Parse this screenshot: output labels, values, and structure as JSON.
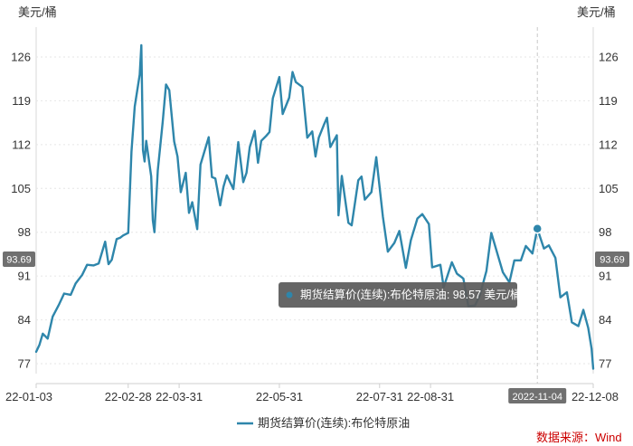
{
  "chart_data": {
    "type": "line",
    "unit_left": "美元/桶",
    "unit_right": "美元/桶",
    "y_ticks": [
      126,
      119,
      112,
      105,
      98,
      91,
      84,
      77
    ],
    "x_ticks": [
      "22-01-03",
      "22-02-28",
      "22-03-31",
      "22-05-31",
      "22-07-31",
      "22-08-31",
      "22-12-08"
    ],
    "ylim": [
      74,
      131
    ],
    "grid": true,
    "legend_position": "bottom",
    "current_value_label": "93.69",
    "crosshair_date": "2022-11-04",
    "tooltip": {
      "series": "期货结算价(连续):布伦特原油",
      "value": "98.57",
      "unit": "美元/桶"
    },
    "source_label": "数据来源：Wind",
    "line_color": "#2e86ab",
    "series": [
      {
        "name": "期货结算价(连续):布伦特原油",
        "x": [
          "2022-01-03",
          "2022-01-05",
          "2022-01-07",
          "2022-01-10",
          "2022-01-13",
          "2022-01-17",
          "2022-01-20",
          "2022-01-24",
          "2022-01-27",
          "2022-01-31",
          "2022-02-03",
          "2022-02-07",
          "2022-02-10",
          "2022-02-14",
          "2022-02-16",
          "2022-02-18",
          "2022-02-21",
          "2022-02-23",
          "2022-02-25",
          "2022-02-28",
          "2022-03-02",
          "2022-03-04",
          "2022-03-07",
          "2022-03-08",
          "2022-03-09",
          "2022-03-10",
          "2022-03-11",
          "2022-03-14",
          "2022-03-15",
          "2022-03-16",
          "2022-03-18",
          "2022-03-21",
          "2022-03-23",
          "2022-03-25",
          "2022-03-28",
          "2022-03-30",
          "2022-04-01",
          "2022-04-04",
          "2022-04-06",
          "2022-04-08",
          "2022-04-11",
          "2022-04-13",
          "2022-04-18",
          "2022-04-20",
          "2022-04-22",
          "2022-04-25",
          "2022-04-27",
          "2022-04-29",
          "2022-05-03",
          "2022-05-06",
          "2022-05-09",
          "2022-05-11",
          "2022-05-13",
          "2022-05-16",
          "2022-05-18",
          "2022-05-20",
          "2022-05-23",
          "2022-05-25",
          "2022-05-27",
          "2022-05-31",
          "2022-06-02",
          "2022-06-06",
          "2022-06-08",
          "2022-06-10",
          "2022-06-14",
          "2022-06-17",
          "2022-06-20",
          "2022-06-22",
          "2022-06-24",
          "2022-06-27",
          "2022-06-29",
          "2022-07-01",
          "2022-07-05",
          "2022-07-06",
          "2022-07-08",
          "2022-07-12",
          "2022-07-14",
          "2022-07-18",
          "2022-07-20",
          "2022-07-22",
          "2022-07-26",
          "2022-07-29",
          "2022-08-02",
          "2022-08-05",
          "2022-08-09",
          "2022-08-12",
          "2022-08-16",
          "2022-08-19",
          "2022-08-23",
          "2022-08-26",
          "2022-08-30",
          "2022-09-01",
          "2022-09-06",
          "2022-09-08",
          "2022-09-13",
          "2022-09-16",
          "2022-09-20",
          "2022-09-23",
          "2022-09-27",
          "2022-09-30",
          "2022-10-04",
          "2022-10-07",
          "2022-10-11",
          "2022-10-14",
          "2022-10-18",
          "2022-10-21",
          "2022-10-25",
          "2022-10-28",
          "2022-11-01",
          "2022-11-04",
          "2022-11-08",
          "2022-11-11",
          "2022-11-15",
          "2022-11-18",
          "2022-11-22",
          "2022-11-25",
          "2022-11-29",
          "2022-12-02",
          "2022-12-05",
          "2022-12-07",
          "2022-12-08"
        ],
        "values": [
          78.9,
          80.0,
          81.8,
          81.0,
          84.5,
          86.5,
          88.2,
          88.0,
          89.8,
          91.2,
          92.8,
          92.7,
          93.0,
          96.5,
          92.9,
          93.6,
          96.9,
          97.1,
          97.5,
          97.9,
          110.9,
          118.1,
          123.2,
          127.9,
          111.1,
          109.3,
          112.6,
          106.9,
          99.9,
          98.0,
          107.9,
          115.6,
          121.6,
          120.7,
          112.5,
          110.1,
          104.4,
          107.5,
          101.1,
          102.8,
          98.5,
          108.8,
          113.2,
          106.8,
          106.6,
          102.3,
          105.3,
          107.1,
          104.9,
          112.4,
          106.0,
          107.5,
          111.6,
          114.2,
          109.1,
          112.6,
          113.4,
          114.0,
          119.4,
          122.8,
          116.9,
          119.5,
          123.6,
          122.0,
          121.2,
          113.1,
          114.1,
          110.1,
          113.1,
          115.1,
          116.3,
          111.6,
          113.5,
          100.7,
          107.0,
          99.5,
          99.1,
          106.3,
          106.9,
          103.2,
          104.4,
          110.0,
          100.5,
          94.9,
          96.3,
          98.2,
          92.3,
          96.7,
          100.2,
          100.9,
          99.3,
          92.4,
          92.8,
          89.2,
          93.2,
          91.4,
          90.6,
          86.2,
          86.3,
          87.9,
          91.8,
          97.9,
          94.3,
          91.6,
          90.0,
          93.5,
          93.5,
          95.8,
          94.6,
          98.57,
          95.4,
          95.9,
          93.9,
          87.6,
          88.4,
          83.6,
          83.0,
          85.6,
          82.7,
          79.4,
          76.2
        ]
      }
    ]
  }
}
